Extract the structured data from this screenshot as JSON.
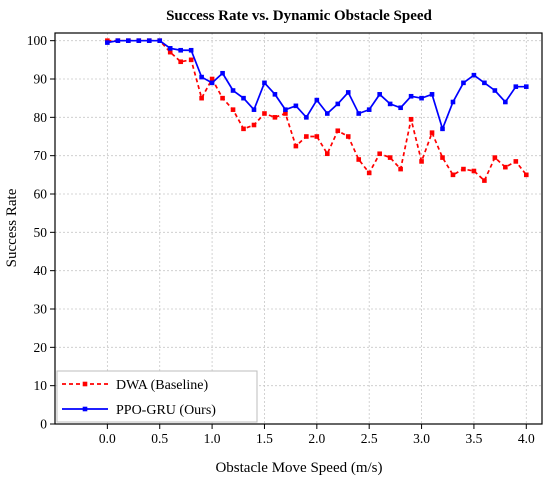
{
  "chart_data": {
    "type": "line",
    "title": "Success Rate vs. Dynamic Obstacle Speed",
    "xlabel": "Obstacle Move Speed (m/s)",
    "ylabel": "Success Rate",
    "xlim": [
      -0.5,
      4.15
    ],
    "ylim": [
      0,
      102
    ],
    "x_ticks": [
      "0.0",
      "0.5",
      "1.0",
      "1.5",
      "2.0",
      "2.5",
      "3.0",
      "3.5",
      "4.0"
    ],
    "y_ticks": [
      "0",
      "10",
      "20",
      "30",
      "40",
      "50",
      "60",
      "70",
      "80",
      "90",
      "100"
    ],
    "grid": true,
    "legend_position": "lower-left",
    "x": [
      0.0,
      0.1,
      0.2,
      0.3,
      0.4,
      0.5,
      0.6,
      0.7,
      0.8,
      0.9,
      1.0,
      1.1,
      1.2,
      1.3,
      1.4,
      1.5,
      1.6,
      1.7,
      1.8,
      1.9,
      2.0,
      2.1,
      2.2,
      2.3,
      2.4,
      2.5,
      2.6,
      2.7,
      2.8,
      2.9,
      3.0,
      3.1,
      3.2,
      3.3,
      3.4,
      3.5,
      3.6,
      3.7,
      3.8,
      3.9,
      4.0
    ],
    "series": [
      {
        "name": "DWA (Baseline)",
        "color": "#ff0000",
        "style": "dashed",
        "values": [
          100.0,
          100.0,
          100.0,
          100.0,
          100.0,
          100.0,
          97.0,
          94.5,
          95.0,
          85.0,
          90.0,
          85.0,
          82.0,
          77.0,
          78.0,
          81.0,
          80.0,
          81.0,
          72.5,
          75.0,
          75.0,
          70.5,
          76.5,
          75.0,
          69.0,
          65.5,
          70.5,
          69.5,
          66.5,
          79.5,
          68.5,
          76.0,
          69.5,
          65.0,
          66.5,
          66.0,
          63.5,
          69.5,
          67.0,
          68.5,
          65.0
        ]
      },
      {
        "name": "PPO-GRU (Ours)",
        "color": "#0000ff",
        "style": "solid",
        "values": [
          99.5,
          100.0,
          100.0,
          100.0,
          100.0,
          100.0,
          98.0,
          97.5,
          97.5,
          90.5,
          89.0,
          91.5,
          87.0,
          85.0,
          82.0,
          89.0,
          86.0,
          82.0,
          83.0,
          80.0,
          84.5,
          81.0,
          83.5,
          86.5,
          81.0,
          82.0,
          86.0,
          83.5,
          82.5,
          85.5,
          85.0,
          86.0,
          77.0,
          84.0,
          89.0,
          91.0,
          89.0,
          87.0,
          84.0,
          88.0,
          88.0
        ]
      }
    ]
  }
}
